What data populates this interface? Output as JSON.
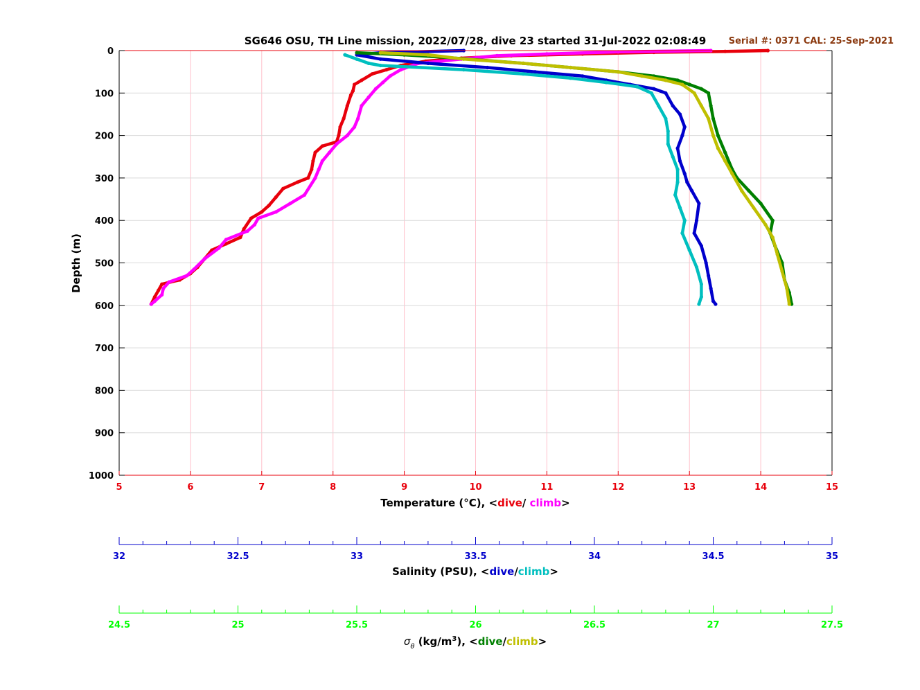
{
  "title": "SG646 OSU, TH Line mission, 2022/07/28, dive 23 started 31-Jul-2022 02:08:49",
  "serial_text": "Serial #: 0371  CAL: 25-Sep-2021",
  "colors": {
    "temp_dive": "#e8000b",
    "temp_climb": "#ff00ff",
    "sal_dive": "#0000cc",
    "sal_climb": "#00bfbf",
    "sig_dive": "#008000",
    "sig_climb": "#bfbf00",
    "temp_axis": "#e8000b",
    "sal_axis": "#0000cc",
    "sig_axis": "#00ff00",
    "serial": "#8b3a10",
    "grid_v": "#ffc0cb",
    "grid_h": "#d9d9d9"
  },
  "labels": {
    "ylabel": "Depth (m)",
    "temp": {
      "prefix": "Temperature (°C), <",
      "dive": "dive",
      "sep": "/ ",
      "climb": "climb",
      "suffix": ">"
    },
    "sal": {
      "prefix": "Salinity (PSU), <",
      "dive": "dive",
      "sep": "/",
      "climb": "climb",
      "suffix": ">"
    },
    "sig": {
      "sym": "σ",
      "sub": "θ",
      "units": " (kg/m",
      "exp": "3",
      "close": "), <",
      "dive": "dive",
      "sep": "/",
      "climb": "climb",
      "suffix": ">"
    }
  },
  "chart_data": {
    "type": "scatter",
    "y_axis": {
      "label": "Depth (m)",
      "range": [
        0,
        1000
      ],
      "reversed": true,
      "ticks": [
        "0",
        "100",
        "200",
        "300",
        "400",
        "500",
        "600",
        "700",
        "800",
        "900",
        "1000"
      ]
    },
    "axes": {
      "temperature": {
        "range": [
          5,
          15
        ],
        "ticks": [
          "5",
          "6",
          "7",
          "8",
          "9",
          "10",
          "11",
          "12",
          "13",
          "14",
          "15"
        ]
      },
      "salinity": {
        "range": [
          32,
          35
        ],
        "ticks": [
          "32",
          "32.5",
          "33",
          "33.5",
          "34",
          "34.5",
          "35"
        ],
        "minor_step": 0.1
      },
      "sigma_theta": {
        "range": [
          24.5,
          27.5
        ],
        "ticks": [
          "24.5",
          "25",
          "25.5",
          "26",
          "26.5",
          "27",
          "27.5"
        ],
        "minor_step": 0.1
      }
    },
    "grid": true,
    "series": [
      {
        "name": "temperature dive",
        "axis": "temperature",
        "points": [
          [
            14.1,
            0
          ],
          [
            13.5,
            2
          ],
          [
            12.5,
            4
          ],
          [
            11.5,
            8
          ],
          [
            10.5,
            12
          ],
          [
            9.8,
            18
          ],
          [
            9.3,
            25
          ],
          [
            8.95,
            35
          ],
          [
            8.75,
            45
          ],
          [
            8.55,
            55
          ],
          [
            8.4,
            70
          ],
          [
            8.3,
            80
          ],
          [
            8.28,
            95
          ],
          [
            8.25,
            105
          ],
          [
            8.2,
            130
          ],
          [
            8.15,
            160
          ],
          [
            8.1,
            180
          ],
          [
            8.08,
            200
          ],
          [
            8.05,
            215
          ],
          [
            7.85,
            225
          ],
          [
            7.75,
            240
          ],
          [
            7.72,
            260
          ],
          [
            7.7,
            280
          ],
          [
            7.65,
            300
          ],
          [
            7.5,
            310
          ],
          [
            7.3,
            325
          ],
          [
            7.2,
            345
          ],
          [
            7.1,
            365
          ],
          [
            7.0,
            380
          ],
          [
            6.85,
            395
          ],
          [
            6.75,
            420
          ],
          [
            6.7,
            440
          ],
          [
            6.5,
            455
          ],
          [
            6.3,
            470
          ],
          [
            6.2,
            490
          ],
          [
            6.1,
            510
          ],
          [
            6.0,
            525
          ],
          [
            5.85,
            540
          ],
          [
            5.6,
            550
          ],
          [
            5.55,
            565
          ],
          [
            5.5,
            580
          ],
          [
            5.45,
            597
          ]
        ]
      },
      {
        "name": "temperature climb",
        "axis": "temperature",
        "points": [
          [
            13.3,
            0
          ],
          [
            12.0,
            3
          ],
          [
            11.0,
            8
          ],
          [
            10.3,
            12
          ],
          [
            9.8,
            20
          ],
          [
            9.2,
            30
          ],
          [
            8.95,
            45
          ],
          [
            8.8,
            60
          ],
          [
            8.7,
            75
          ],
          [
            8.6,
            90
          ],
          [
            8.5,
            110
          ],
          [
            8.4,
            130
          ],
          [
            8.35,
            160
          ],
          [
            8.3,
            180
          ],
          [
            8.2,
            200
          ],
          [
            8.05,
            220
          ],
          [
            7.95,
            240
          ],
          [
            7.85,
            260
          ],
          [
            7.8,
            280
          ],
          [
            7.75,
            300
          ],
          [
            7.6,
            340
          ],
          [
            7.4,
            360
          ],
          [
            7.2,
            380
          ],
          [
            6.95,
            395
          ],
          [
            6.9,
            410
          ],
          [
            6.8,
            425
          ],
          [
            6.5,
            445
          ],
          [
            6.4,
            465
          ],
          [
            6.2,
            490
          ],
          [
            6.05,
            515
          ],
          [
            5.95,
            530
          ],
          [
            5.7,
            545
          ],
          [
            5.62,
            560
          ],
          [
            5.6,
            575
          ],
          [
            5.5,
            590
          ],
          [
            5.45,
            597
          ]
        ]
      },
      {
        "name": "salinity dive",
        "axis": "salinity",
        "points": [
          [
            33.45,
            0
          ],
          [
            33.1,
            5
          ],
          [
            33.0,
            10
          ],
          [
            33.1,
            20
          ],
          [
            33.3,
            30
          ],
          [
            33.55,
            40
          ],
          [
            33.75,
            50
          ],
          [
            33.95,
            60
          ],
          [
            34.05,
            70
          ],
          [
            34.15,
            80
          ],
          [
            34.25,
            90
          ],
          [
            34.3,
            100
          ],
          [
            34.33,
            130
          ],
          [
            34.36,
            150
          ],
          [
            34.38,
            180
          ],
          [
            34.37,
            200
          ],
          [
            34.35,
            230
          ],
          [
            34.36,
            260
          ],
          [
            34.38,
            290
          ],
          [
            34.39,
            310
          ],
          [
            34.41,
            330
          ],
          [
            34.44,
            360
          ],
          [
            34.43,
            400
          ],
          [
            34.42,
            430
          ],
          [
            34.45,
            460
          ],
          [
            34.47,
            500
          ],
          [
            34.48,
            530
          ],
          [
            34.49,
            560
          ],
          [
            34.5,
            590
          ],
          [
            34.51,
            597
          ]
        ]
      },
      {
        "name": "salinity climb",
        "axis": "salinity",
        "points": [
          [
            32.95,
            10
          ],
          [
            33.0,
            20
          ],
          [
            33.05,
            30
          ],
          [
            33.1,
            35
          ],
          [
            33.45,
            45
          ],
          [
            33.7,
            55
          ],
          [
            33.9,
            65
          ],
          [
            34.05,
            75
          ],
          [
            34.18,
            85
          ],
          [
            34.24,
            100
          ],
          [
            34.27,
            130
          ],
          [
            34.3,
            160
          ],
          [
            34.31,
            190
          ],
          [
            34.31,
            220
          ],
          [
            34.33,
            250
          ],
          [
            34.35,
            280
          ],
          [
            34.35,
            310
          ],
          [
            34.34,
            340
          ],
          [
            34.36,
            370
          ],
          [
            34.38,
            400
          ],
          [
            34.37,
            430
          ],
          [
            34.4,
            470
          ],
          [
            34.43,
            510
          ],
          [
            34.45,
            550
          ],
          [
            34.45,
            580
          ],
          [
            34.44,
            597
          ]
        ]
      },
      {
        "name": "sigma_theta dive",
        "axis": "sigma_theta",
        "points": [
          [
            25.5,
            5
          ],
          [
            25.7,
            10
          ],
          [
            25.85,
            15
          ],
          [
            26.2,
            30
          ],
          [
            26.4,
            40
          ],
          [
            26.6,
            50
          ],
          [
            26.75,
            60
          ],
          [
            26.85,
            70
          ],
          [
            26.9,
            80
          ],
          [
            26.95,
            90
          ],
          [
            26.98,
            100
          ],
          [
            26.99,
            130
          ],
          [
            27.0,
            160
          ],
          [
            27.02,
            200
          ],
          [
            27.05,
            240
          ],
          [
            27.08,
            280
          ],
          [
            27.1,
            300
          ],
          [
            27.15,
            330
          ],
          [
            27.2,
            360
          ],
          [
            27.25,
            400
          ],
          [
            27.24,
            430
          ],
          [
            27.26,
            460
          ],
          [
            27.29,
            500
          ],
          [
            27.3,
            540
          ],
          [
            27.32,
            570
          ],
          [
            27.33,
            597
          ]
        ]
      },
      {
        "name": "sigma_theta climb",
        "axis": "sigma_theta",
        "points": [
          [
            25.6,
            5
          ],
          [
            25.8,
            10
          ],
          [
            25.95,
            20
          ],
          [
            26.2,
            30
          ],
          [
            26.4,
            40
          ],
          [
            26.6,
            50
          ],
          [
            26.7,
            60
          ],
          [
            26.8,
            70
          ],
          [
            26.87,
            80
          ],
          [
            26.92,
            100
          ],
          [
            26.95,
            130
          ],
          [
            26.98,
            160
          ],
          [
            27.0,
            200
          ],
          [
            27.02,
            230
          ],
          [
            27.05,
            260
          ],
          [
            27.08,
            290
          ],
          [
            27.12,
            330
          ],
          [
            27.17,
            370
          ],
          [
            27.22,
            410
          ],
          [
            27.25,
            440
          ],
          [
            27.27,
            480
          ],
          [
            27.29,
            520
          ],
          [
            27.31,
            560
          ],
          [
            27.32,
            597
          ]
        ]
      }
    ]
  }
}
